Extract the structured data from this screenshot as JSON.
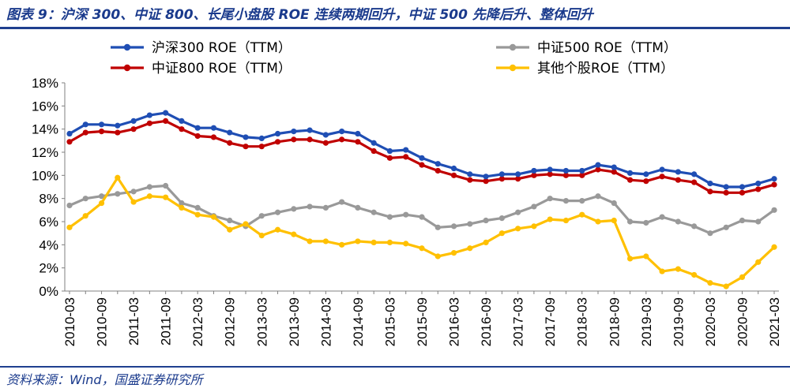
{
  "title": "图表 9：沪深 300、中证 800、长尾小盘股 ROE 连续两期回升，中证 500 先降后升、整体回升",
  "source": "资料来源：Wind，国盛证券研究所",
  "colors": {
    "hs300": "#1f4eb4",
    "zz800": "#c00000",
    "zz500": "#999999",
    "other": "#ffc000"
  },
  "chart_data": {
    "type": "line",
    "title": "",
    "xlabel": "",
    "ylabel": "",
    "ylim": [
      0,
      18
    ],
    "yticks": [
      "0%",
      "2%",
      "4%",
      "6%",
      "8%",
      "10%",
      "12%",
      "14%",
      "16%",
      "18%"
    ],
    "grid": false,
    "legend_position": "top",
    "x": [
      "2010-03",
      "2010-06",
      "2010-09",
      "2010-12",
      "2011-03",
      "2011-06",
      "2011-09",
      "2011-12",
      "2012-03",
      "2012-06",
      "2012-09",
      "2012-12",
      "2013-03",
      "2013-06",
      "2013-09",
      "2013-12",
      "2014-03",
      "2014-06",
      "2014-09",
      "2014-12",
      "2015-03",
      "2015-06",
      "2015-09",
      "2015-12",
      "2016-03",
      "2016-06",
      "2016-09",
      "2016-12",
      "2017-03",
      "2017-06",
      "2017-09",
      "2017-12",
      "2018-03",
      "2018-06",
      "2018-09",
      "2018-12",
      "2019-03",
      "2019-06",
      "2019-09",
      "2019-12",
      "2020-03",
      "2020-06",
      "2020-09",
      "2020-12",
      "2021-03"
    ],
    "xtick_labels": [
      "2010-03",
      "2010-09",
      "2011-03",
      "2011-09",
      "2012-03",
      "2012-09",
      "2013-03",
      "2013-09",
      "2014-03",
      "2014-09",
      "2015-03",
      "2015-09",
      "2016-03",
      "2016-09",
      "2017-03",
      "2017-09",
      "2018-03",
      "2018-09",
      "2019-03",
      "2019-09",
      "2020-03",
      "2020-09",
      "2021-03"
    ],
    "series": [
      {
        "key": "hs300",
        "name": "沪深300 ROE（TTM）",
        "values": [
          13.6,
          14.4,
          14.4,
          14.3,
          14.7,
          15.2,
          15.4,
          14.7,
          14.1,
          14.1,
          13.7,
          13.3,
          13.2,
          13.6,
          13.8,
          13.9,
          13.5,
          13.8,
          13.6,
          12.8,
          12.1,
          12.2,
          11.5,
          11.0,
          10.6,
          10.1,
          9.9,
          10.1,
          10.1,
          10.4,
          10.5,
          10.4,
          10.4,
          10.9,
          10.7,
          10.2,
          10.1,
          10.5,
          10.3,
          10.1,
          9.3,
          9.0,
          9.0,
          9.3,
          9.7
        ]
      },
      {
        "key": "zz500",
        "name": "中证500 ROE（TTM）",
        "values": [
          7.4,
          8.0,
          8.2,
          8.4,
          8.6,
          9.0,
          9.1,
          7.6,
          7.2,
          6.5,
          6.1,
          5.6,
          6.5,
          6.8,
          7.1,
          7.3,
          7.2,
          7.7,
          7.2,
          6.8,
          6.4,
          6.6,
          6.4,
          5.5,
          5.6,
          5.8,
          6.1,
          6.3,
          6.8,
          7.3,
          8.0,
          7.8,
          7.8,
          8.2,
          7.6,
          6.0,
          5.9,
          6.4,
          6.0,
          5.6,
          5.0,
          5.5,
          6.1,
          6.0,
          7.0
        ]
      },
      {
        "key": "zz800",
        "name": "中证800 ROE（TTM）",
        "values": [
          12.9,
          13.7,
          13.8,
          13.7,
          14.0,
          14.5,
          14.7,
          14.0,
          13.4,
          13.3,
          12.8,
          12.5,
          12.5,
          12.9,
          13.1,
          13.1,
          12.8,
          13.1,
          12.9,
          12.1,
          11.5,
          11.6,
          10.9,
          10.4,
          10.0,
          9.6,
          9.5,
          9.7,
          9.7,
          10.0,
          10.1,
          10.0,
          10.0,
          10.5,
          10.3,
          9.6,
          9.5,
          9.9,
          9.6,
          9.4,
          8.6,
          8.5,
          8.5,
          8.8,
          9.2
        ]
      },
      {
        "key": "other",
        "name": "其他个股ROE（TTM）",
        "values": [
          5.5,
          6.5,
          7.6,
          9.8,
          7.7,
          8.2,
          8.1,
          7.2,
          6.6,
          6.4,
          5.3,
          5.8,
          4.8,
          5.3,
          4.9,
          4.3,
          4.3,
          4.0,
          4.3,
          4.2,
          4.2,
          4.1,
          3.7,
          3.0,
          3.3,
          3.7,
          4.2,
          5.0,
          5.4,
          5.6,
          6.2,
          6.1,
          6.6,
          6.0,
          6.1,
          2.8,
          3.0,
          1.7,
          1.9,
          1.4,
          0.7,
          0.4,
          1.2,
          2.5,
          3.8
        ]
      }
    ]
  }
}
